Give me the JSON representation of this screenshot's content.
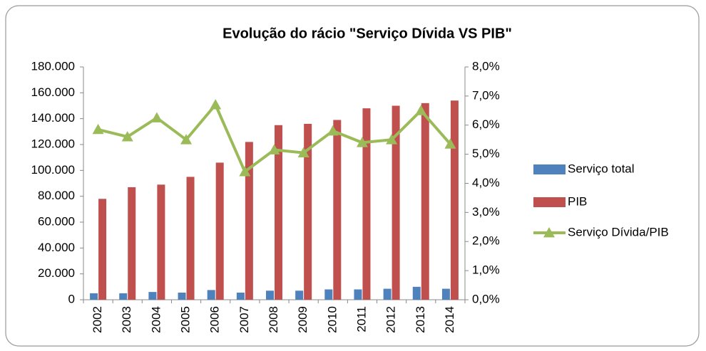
{
  "chart_data": {
    "type": "bar",
    "title": "Evolução do rácio \"Serviço Dívida VS PIB\"",
    "categories": [
      "2002",
      "2003",
      "2004",
      "2005",
      "2006",
      "2007",
      "2008",
      "2009",
      "2010",
      "2011",
      "2012",
      "2013",
      "2014"
    ],
    "series": [
      {
        "name": "Serviço total",
        "color": "#4f81bd",
        "type": "bar",
        "values": [
          5000,
          5000,
          6000,
          5500,
          7500,
          5500,
          7000,
          7000,
          8000,
          8000,
          8500,
          10000,
          8500
        ]
      },
      {
        "name": "PIB",
        "color": "#c0504d",
        "type": "bar",
        "values": [
          78000,
          87000,
          89000,
          95000,
          106000,
          122000,
          135000,
          136000,
          139000,
          148000,
          150000,
          152000,
          154000
        ]
      },
      {
        "name": "Serviço Dívida/PIB",
        "color": "#9bbb59",
        "type": "line",
        "axis": "y2",
        "values": [
          5.85,
          5.6,
          6.25,
          5.5,
          6.7,
          4.4,
          5.15,
          5.05,
          5.8,
          5.4,
          5.5,
          6.5,
          5.35
        ]
      }
    ],
    "ylim": [
      0,
      180000
    ],
    "yticks": [
      0,
      {
        "value": 20000,
        "label": "20.000"
      },
      {
        "value": 40000,
        "label": "40.000"
      },
      {
        "value": 60000,
        "label": "60.000"
      },
      {
        "value": 80000,
        "label": "80.000"
      },
      {
        "value": 100000,
        "label": "100.000"
      },
      {
        "value": 120000,
        "label": "120.000"
      },
      {
        "value": 140000,
        "label": "140.000"
      },
      {
        "value": 160000,
        "label": "160.000"
      },
      {
        "value": 180000,
        "label": "180.000"
      }
    ],
    "y2lim": [
      0,
      8
    ],
    "y2ticks": [
      {
        "value": 0,
        "label": "0,0%"
      },
      {
        "value": 1,
        "label": "1,0%"
      },
      {
        "value": 2,
        "label": "2,0%"
      },
      {
        "value": 3,
        "label": "3,0%"
      },
      {
        "value": 4,
        "label": "4,0%"
      },
      {
        "value": 5,
        "label": "5,0%"
      },
      {
        "value": 6,
        "label": "6,0%"
      },
      {
        "value": 7,
        "label": "7,0%"
      },
      {
        "value": 8,
        "label": "8,0%"
      }
    ],
    "legend": "right"
  }
}
